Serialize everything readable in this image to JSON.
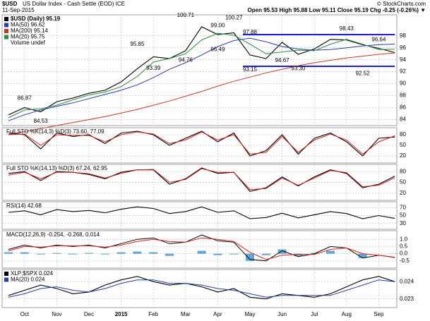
{
  "header": {
    "symbol": "$USD",
    "name": "US Dollar Index - Cash Settle (EOD) ICE",
    "date": "11-Sep-2015",
    "quote": "Open 95.53 High 95.88 Low 95.11 Close 95.19 Chg -0.25 (-0.26%) ▼",
    "credit": "© StockCharts.com"
  },
  "chart_data": [
    {
      "type": "line",
      "categories": [
        null,
        "Oct",
        null,
        "Nov",
        null,
        "Dec",
        null,
        "2015",
        null,
        "Feb",
        null,
        "Mar",
        null,
        "Apr",
        null,
        "May",
        null,
        "Jun",
        null,
        "Jul",
        null,
        "Aug",
        null,
        "Sep",
        null
      ],
      "ylim": [
        83,
        101.5
      ],
      "yticks": [
        84,
        86,
        88,
        90,
        92,
        94,
        96,
        98
      ],
      "grid": true,
      "series": [
        {
          "name": "$USD (Daily) 95.19",
          "color": "#000000",
          "values": [
            84.8,
            86.0,
            85.3,
            87.0,
            87.6,
            88.4,
            88.9,
            90.3,
            92.5,
            94.5,
            94.2,
            95.5,
            99.5,
            98.2,
            98.5,
            94.8,
            94.2,
            96.9,
            94.9,
            95.8,
            97.4,
            97.3,
            96.5,
            95.9,
            95.19
          ]
        },
        {
          "name": "MA(50) 96.62",
          "color": "#2a3f9e",
          "values": [
            83.8,
            84.8,
            85.6,
            86.2,
            86.8,
            87.5,
            88.2,
            88.9,
            89.8,
            91.0,
            92.4,
            93.5,
            94.8,
            96.2,
            97.2,
            97.6,
            97.0,
            96.2,
            95.8,
            95.6,
            95.7,
            96.0,
            96.3,
            96.5,
            96.62
          ]
        },
        {
          "name": "MA(200) 95.14",
          "color": "#c0392b",
          "values": [
            81.5,
            82.0,
            82.5,
            83.0,
            83.5,
            84.0,
            84.5,
            85.1,
            85.7,
            86.4,
            87.1,
            87.9,
            88.7,
            89.6,
            90.4,
            91.1,
            91.8,
            92.4,
            93.0,
            93.5,
            93.9,
            94.3,
            94.6,
            94.9,
            95.14
          ]
        },
        {
          "name": "MA(20) 95.75",
          "color": "#2e8b3e",
          "values": [
            84.3,
            85.6,
            85.8,
            86.4,
            87.3,
            88.1,
            88.6,
            89.5,
            91.2,
            93.6,
            94.2,
            95.0,
            97.3,
            98.4,
            98.1,
            96.6,
            95.0,
            95.3,
            95.6,
            95.5,
            96.6,
            97.4,
            96.6,
            95.7,
            95.75
          ]
        }
      ],
      "legend_note": "Volume undef",
      "levels": [
        {
          "value": 98.2,
          "color": "#0000cc"
        },
        {
          "value": 92.9,
          "color": "#0000cc"
        }
      ],
      "annotations": [
        {
          "text": "86.87",
          "value": 86.87
        },
        {
          "text": "84.53",
          "value": 84.53
        },
        {
          "text": "95.85",
          "value": 95.85
        },
        {
          "text": "93.39",
          "value": 93.39
        },
        {
          "text": "100.71",
          "value": 100.71
        },
        {
          "text": "94.76",
          "value": 94.76
        },
        {
          "text": "99.00",
          "value": 99.0
        },
        {
          "text": "96.49",
          "value": 96.49
        },
        {
          "text": "100.27",
          "value": 100.27
        },
        {
          "text": "97.88",
          "value": 97.88
        },
        {
          "text": "93.15",
          "value": 93.15
        },
        {
          "text": "94.67",
          "value": 94.67
        },
        {
          "text": "93.30",
          "value": 93.3
        },
        {
          "text": "98.43",
          "value": 98.43
        },
        {
          "text": "96.64",
          "value": 96.64
        },
        {
          "text": "92.52",
          "value": 92.52
        }
      ]
    },
    {
      "type": "line",
      "title": "Full STO %K(14,3) %D(3) 73.60, 77.09",
      "ylim": [
        0,
        100
      ],
      "yticks": [
        20,
        50,
        80
      ],
      "grid": true,
      "series": [
        {
          "color": "#000000",
          "values": [
            85,
            80,
            40,
            85,
            75,
            80,
            55,
            85,
            90,
            80,
            50,
            70,
            90,
            60,
            85,
            20,
            35,
            80,
            25,
            70,
            85,
            60,
            20,
            70,
            73.6
          ]
        },
        {
          "color": "#d62020",
          "values": [
            80,
            82,
            50,
            80,
            78,
            78,
            60,
            80,
            88,
            82,
            55,
            65,
            88,
            65,
            80,
            25,
            30,
            75,
            30,
            65,
            82,
            65,
            25,
            60,
            77.09
          ]
        }
      ]
    },
    {
      "type": "line",
      "title": "Full STO %K(14,13) %D(3) 67.24, 62.95",
      "ylim": [
        0,
        100
      ],
      "yticks": [
        20,
        50,
        80
      ],
      "grid": true,
      "series": [
        {
          "color": "#000000",
          "values": [
            75,
            80,
            55,
            80,
            78,
            72,
            60,
            78,
            85,
            85,
            45,
            60,
            90,
            75,
            78,
            25,
            35,
            65,
            40,
            65,
            85,
            75,
            35,
            45,
            67.24
          ]
        },
        {
          "color": "#d62020",
          "values": [
            70,
            78,
            60,
            78,
            78,
            74,
            62,
            75,
            85,
            86,
            50,
            58,
            88,
            78,
            78,
            30,
            33,
            62,
            42,
            62,
            83,
            77,
            38,
            42,
            62.95
          ]
        }
      ]
    },
    {
      "type": "line",
      "title": "RSI(14) 42.68",
      "ylim": [
        15,
        85
      ],
      "yticks": [
        30,
        50,
        70
      ],
      "grid": true,
      "series": [
        {
          "color": "#000000",
          "values": [
            58,
            62,
            52,
            65,
            60,
            63,
            57,
            66,
            72,
            68,
            55,
            60,
            72,
            58,
            62,
            42,
            45,
            56,
            44,
            52,
            60,
            55,
            42,
            50,
            42.68
          ]
        }
      ]
    },
    {
      "type": "line",
      "title": "MACD(12,26,9) -0.254, -0.268, 0.014",
      "ylim": [
        -1,
        1.6
      ],
      "yticks": [
        {
          "value": -0.5,
          "label": "-0.5"
        },
        {
          "value": 0,
          "label": "0.0"
        },
        {
          "value": 0.5,
          "label": "0.5"
        },
        {
          "value": 1,
          "label": "1.0"
        }
      ],
      "grid": true,
      "series": [
        {
          "style": "bar",
          "color": "#3a8fc7",
          "values": [
            0.1,
            0.1,
            -0.05,
            0.05,
            -0.05,
            0.05,
            -0.05,
            0.1,
            0.15,
            0.1,
            -0.15,
            0,
            0.2,
            -0.1,
            -0.05,
            -0.5,
            -0.1,
            0.3,
            -0.15,
            0.05,
            0.2,
            0,
            -0.3,
            0,
            0.014
          ]
        },
        {
          "color": "#000000",
          "values": [
            0.3,
            0.6,
            0.4,
            0.6,
            0.5,
            0.6,
            0.4,
            0.7,
            1.0,
            1.1,
            0.7,
            0.8,
            1.3,
            0.9,
            0.8,
            -0.4,
            -0.5,
            0.2,
            -0.2,
            0.0,
            0.5,
            0.4,
            -0.3,
            -0.1,
            -0.254
          ]
        },
        {
          "color": "#d62020",
          "values": [
            0.2,
            0.5,
            0.45,
            0.55,
            0.55,
            0.55,
            0.45,
            0.6,
            0.85,
            1.0,
            0.85,
            0.8,
            1.1,
            1.0,
            0.85,
            0.1,
            -0.4,
            -0.1,
            -0.05,
            -0.05,
            0.3,
            0.4,
            0.0,
            -0.1,
            -0.268
          ]
        }
      ]
    },
    {
      "type": "line",
      "ylim": [
        0.0225,
        0.0247
      ],
      "yticks": [
        0.023,
        0.024
      ],
      "grid": true,
      "series": [
        {
          "name": "XLP:$SPX 0.024",
          "color": "#000000",
          "values": [
            0.0232,
            0.0235,
            0.0238,
            0.0236,
            0.0233,
            0.0234,
            0.0238,
            0.0241,
            0.0243,
            0.024,
            0.0238,
            0.0239,
            0.0237,
            0.0234,
            0.0236,
            0.0231,
            0.023,
            0.0233,
            0.0232,
            0.0231,
            0.0233,
            0.0237,
            0.0241,
            0.0243,
            0.024
          ]
        },
        {
          "name": "MA(20) 0.024",
          "color": "#2a3f9e",
          "values": [
            0.0231,
            0.0233,
            0.0236,
            0.0237,
            0.0235,
            0.0234,
            0.0236,
            0.0239,
            0.0241,
            0.0241,
            0.0239,
            0.0239,
            0.0238,
            0.0236,
            0.0235,
            0.0233,
            0.0231,
            0.0232,
            0.0232,
            0.0232,
            0.0232,
            0.0235,
            0.0238,
            0.0241,
            0.024
          ]
        }
      ]
    }
  ]
}
